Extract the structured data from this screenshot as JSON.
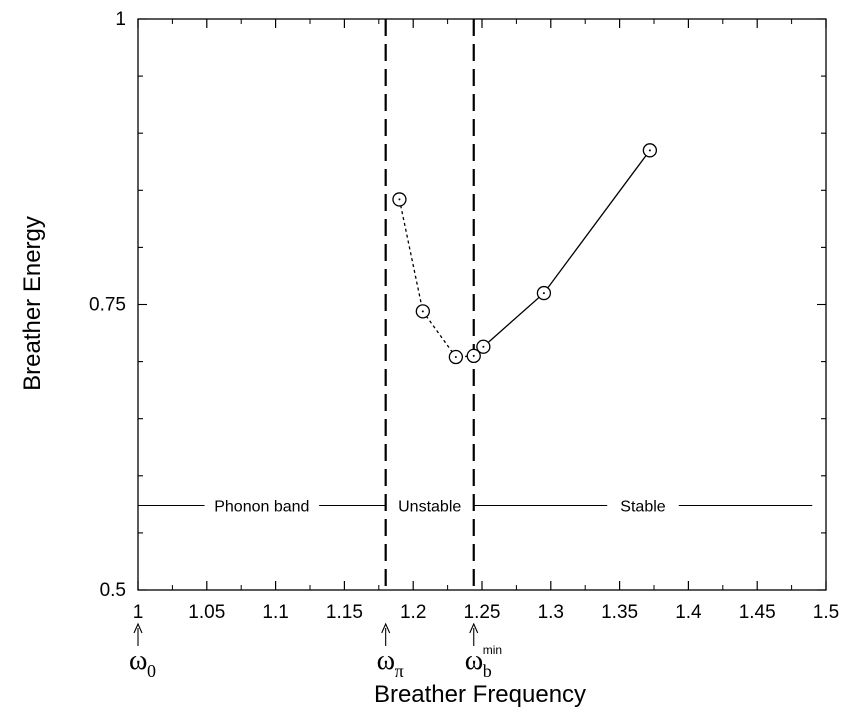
{
  "chart_data": {
    "type": "line",
    "xlabel": "Breather Frequency",
    "ylabel": "Breather Energy",
    "xlim": [
      1.0,
      1.5
    ],
    "ylim": [
      0.5,
      1.0
    ],
    "x_ticks": [
      "1",
      "1.05",
      "1.1",
      "1.15",
      "1.2",
      "1.25",
      "1.3",
      "1.35",
      "1.4",
      "1.45",
      "1.5"
    ],
    "y_ticks": [
      "0.5",
      "0.75",
      "1"
    ],
    "grid": false,
    "series": [
      {
        "style": "dotted",
        "marker": "open-circle-dot",
        "x": [
          1.19,
          1.207,
          1.231,
          1.244
        ],
        "y": [
          0.842,
          0.744,
          0.704,
          0.705
        ]
      },
      {
        "style": "solid",
        "marker": "open-circle-dot",
        "x": [
          1.244,
          1.251,
          1.295,
          1.372
        ],
        "y": [
          0.705,
          0.713,
          0.76,
          0.885
        ]
      }
    ],
    "vlines": [
      1.18,
      1.244
    ],
    "region_line_y": 0.574,
    "regions": [
      {
        "label": "Phonon band",
        "x_start": 1.0,
        "x_end": 1.18
      },
      {
        "label": "Unstable",
        "x_start": 1.18,
        "x_end": 1.244
      },
      {
        "label": "Stable",
        "x_start": 1.244,
        "x_end": 1.49
      }
    ],
    "markers": [
      {
        "symbol": "ω",
        "sub": "0",
        "sup": "",
        "x": 1.0
      },
      {
        "symbol": "ω",
        "sub": "π",
        "sup": "",
        "x": 1.18
      },
      {
        "symbol": "ω",
        "sub": "b",
        "sup": "min",
        "x": 1.244
      }
    ]
  }
}
